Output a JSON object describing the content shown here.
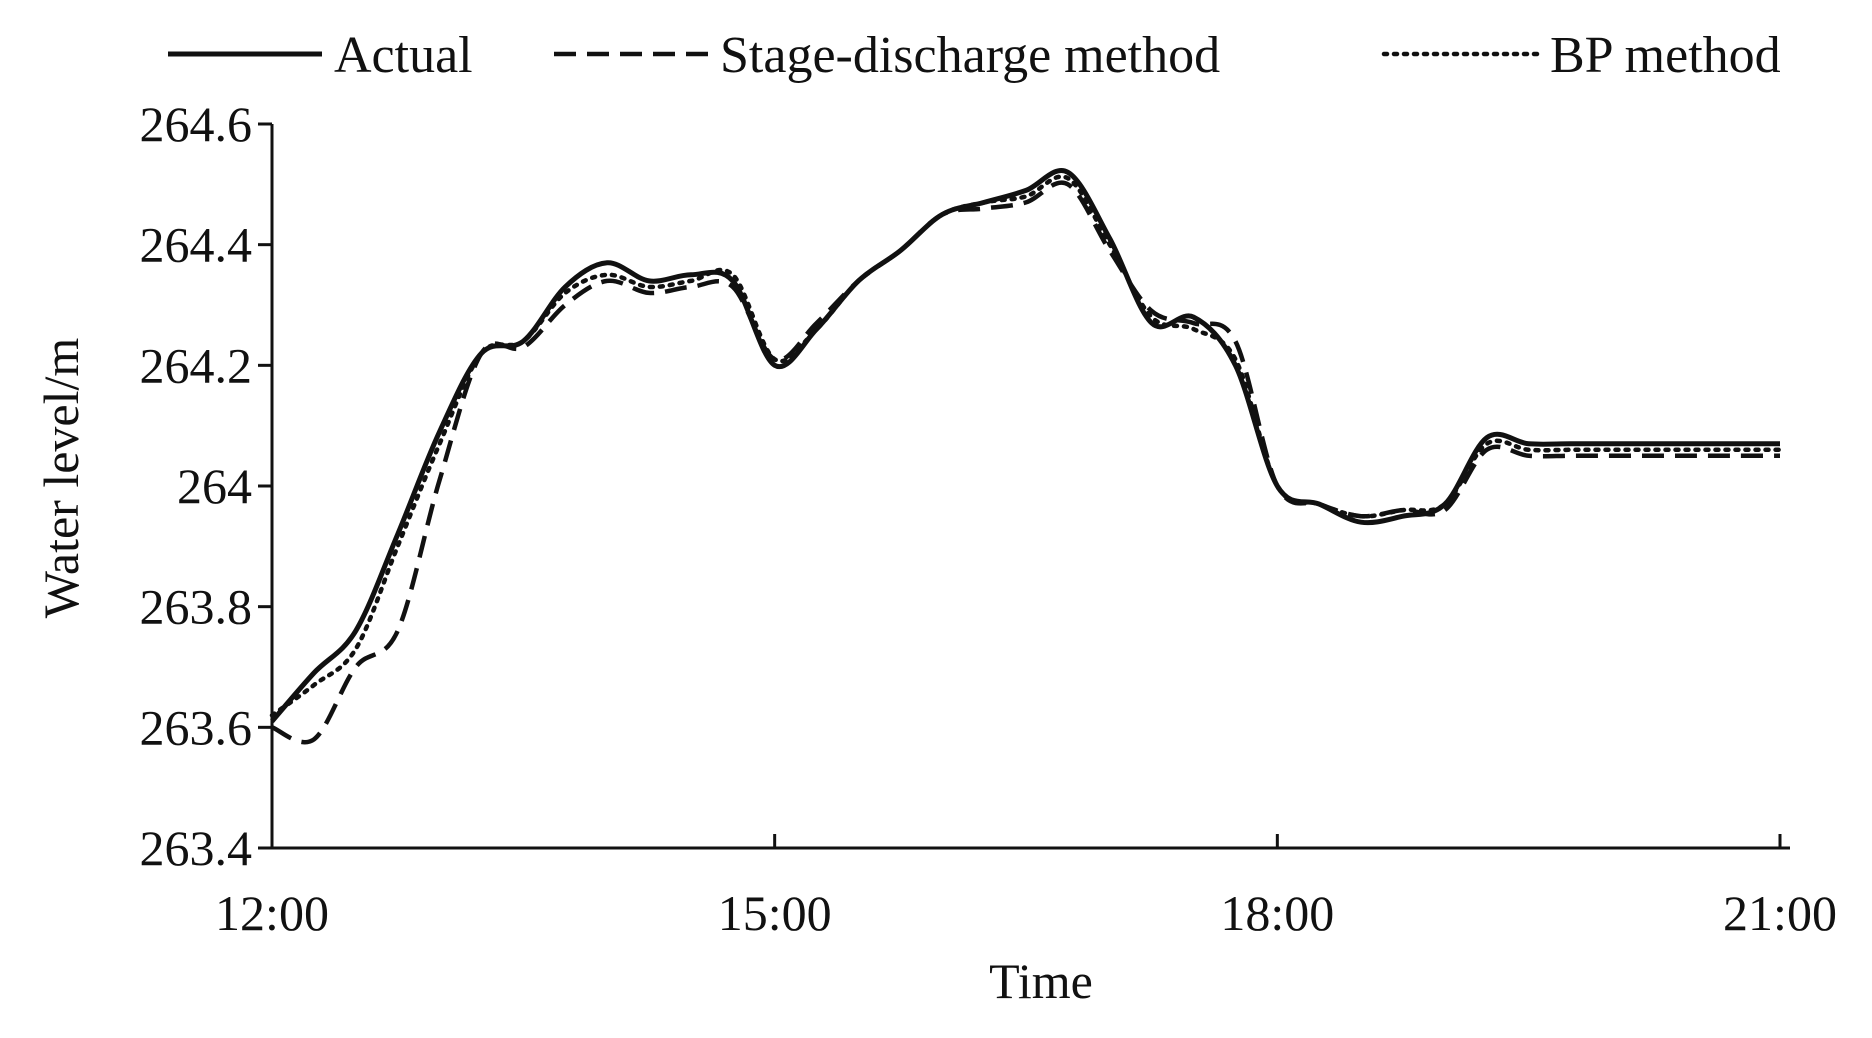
{
  "chart_data": {
    "type": "line",
    "title": "",
    "xlabel": "Time",
    "ylabel": "Water level/m",
    "x_unit": "hours",
    "xlim": [
      12,
      21
    ],
    "ylim": [
      263.4,
      264.6
    ],
    "x_ticks": [
      12,
      15,
      18,
      21
    ],
    "x_tick_labels": [
      "12:00",
      "15:00",
      "18:00",
      "21:00"
    ],
    "y_ticks": [
      263.4,
      263.6,
      263.8,
      264.0,
      264.2,
      264.4,
      264.6
    ],
    "y_tick_labels": [
      "263.4",
      "263.6",
      "263.8",
      "264",
      "264.2",
      "264.4",
      "264.6"
    ],
    "grid": false,
    "legend_position": "top",
    "x": [
      12.0,
      12.25,
      12.5,
      12.75,
      13.0,
      13.25,
      13.5,
      13.75,
      14.0,
      14.25,
      14.5,
      14.75,
      15.0,
      15.25,
      15.5,
      15.75,
      16.0,
      16.25,
      16.5,
      16.75,
      17.0,
      17.25,
      17.5,
      17.75,
      18.0,
      18.25,
      18.5,
      18.75,
      19.0,
      19.25,
      19.5,
      19.75,
      20.0,
      20.25,
      20.5,
      20.75,
      21.0
    ],
    "series": [
      {
        "name": "Actual",
        "color": "#111111",
        "dash": "solid",
        "values": [
          263.61,
          263.69,
          263.76,
          263.92,
          264.09,
          264.22,
          264.24,
          264.33,
          264.37,
          264.34,
          264.35,
          264.34,
          264.2,
          264.26,
          264.34,
          264.39,
          264.45,
          264.47,
          264.49,
          264.52,
          264.41,
          264.27,
          264.28,
          264.2,
          264.0,
          263.97,
          263.94,
          263.95,
          263.97,
          264.08,
          264.07,
          264.07,
          264.07,
          264.07,
          264.07,
          264.07,
          264.07
        ]
      },
      {
        "name": "Stage-discharge method",
        "color": "#111111",
        "dash": "dashed",
        "values": [
          263.6,
          263.58,
          263.7,
          263.76,
          264.01,
          264.22,
          264.23,
          264.3,
          264.34,
          264.32,
          264.33,
          264.33,
          264.21,
          264.27,
          264.34,
          264.39,
          264.45,
          264.46,
          264.47,
          264.5,
          264.39,
          264.29,
          264.27,
          264.24,
          264.0,
          263.97,
          263.95,
          263.96,
          263.96,
          264.06,
          264.05,
          264.05,
          264.05,
          264.05,
          264.05,
          264.05,
          264.05
        ]
      },
      {
        "name": "BP method",
        "color": "#111111",
        "dash": "dotted",
        "values": [
          263.62,
          263.67,
          263.73,
          263.9,
          264.07,
          264.22,
          264.24,
          264.32,
          264.35,
          264.33,
          264.34,
          264.35,
          264.21,
          264.26,
          264.34,
          264.39,
          264.45,
          264.47,
          264.48,
          264.51,
          264.4,
          264.28,
          264.26,
          264.21,
          264.0,
          263.97,
          263.95,
          263.96,
          263.97,
          264.07,
          264.06,
          264.06,
          264.06,
          264.06,
          264.06,
          264.06,
          264.06
        ]
      }
    ]
  }
}
